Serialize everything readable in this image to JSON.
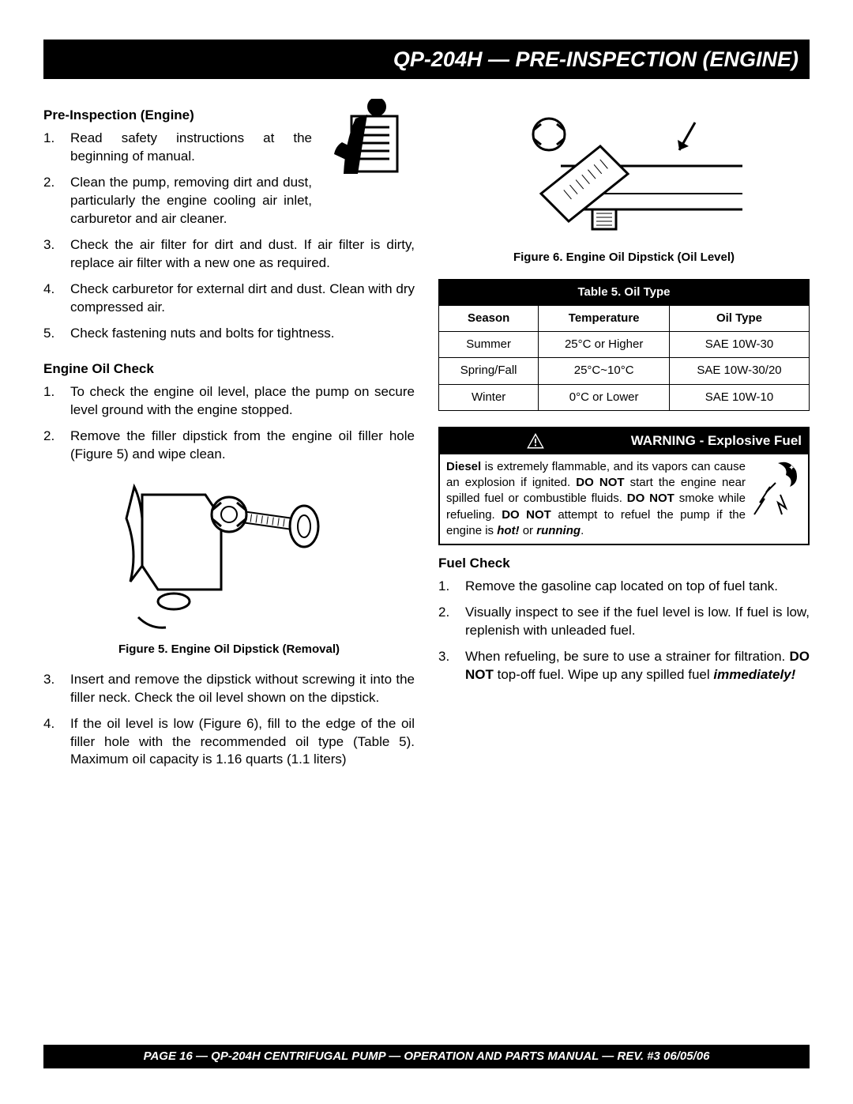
{
  "header": "QP-204H  — PRE-INSPECTION (ENGINE)",
  "left": {
    "preinspect_head": "Pre-Inspection (Engine)",
    "preinspect": [
      "Read safety instructions at the beginning of manual.",
      "Clean the pump, removing dirt and dust, particularly the engine cooling air inlet, carburetor and air cleaner.",
      "Check the air filter for dirt and dust.  If air filter is dirty, replace air filter with a new one as required.",
      "Check carburetor for external dirt and dust. Clean with dry compressed air.",
      "Check fastening nuts and bolts for tightness."
    ],
    "oilcheck_head": "Engine Oil Check",
    "oilcheck_a": [
      "To check the engine oil level, place the pump on secure level ground with the engine stopped.",
      "Remove the filler dipstick from the engine oil filler hole (Figure 5) and wipe clean."
    ],
    "fig5_cap": "Figure 5. Engine Oil Dipstick (Removal)",
    "oilcheck_b": [
      "Insert and remove the dipstick without screwing it into the filler neck. Check the oil level shown on the dipstick.",
      "If the oil level is low (Figure 6), fill to the edge of the oil filler hole with the recommended oil type (Table 5). Maximum  oil capacity is 1.16 quarts (1.1 liters)"
    ]
  },
  "right": {
    "fig6_cap": "Figure 6. Engine Oil Dipstick (Oil Level)",
    "table": {
      "title": "Table 5. Oil Type",
      "columns": [
        "Season",
        "Temperature",
        "Oil Type"
      ],
      "rows": [
        [
          "Summer",
          "25°C or Higher",
          "SAE 10W-30"
        ],
        [
          "Spring/Fall",
          "25°C~10°C",
          "SAE 10W-30/20"
        ],
        [
          "Winter",
          "0°C or Lower",
          "SAE 10W-10"
        ]
      ],
      "border_color": "#000000",
      "header_bg": "#000000",
      "header_fg": "#ffffff"
    },
    "warning": {
      "head": "WARNING - Explosive Fuel",
      "body_html": "<b>Diesel</b> is extremely flammable, and its vapors can cause an explosion if ignited.  <b>DO NOT</b> start the engine near spilled fuel or combustible fluids. <b>DO NOT</b> smoke while refueling. <b>DO NOT</b> attempt to refuel the pump if the engine is <b><i>hot!</i></b> or <b><i>running</i></b>."
    },
    "fuel_head": "Fuel Check",
    "fuel": [
      "Remove the gasoline cap located on top of fuel tank.",
      "Visually inspect to see if the fuel level is low.  If fuel is low, replenish with unleaded fuel.",
      "When refueling, be sure to use a strainer for filtration. <b>DO NOT</b> top-off fuel. Wipe up any spilled fuel <b><i>immediately!</i></b>"
    ]
  },
  "footer": "PAGE 16 — QP-204H CENTRIFUGAL PUMP — OPERATION AND PARTS MANUAL — REV. #3   06/05/06"
}
